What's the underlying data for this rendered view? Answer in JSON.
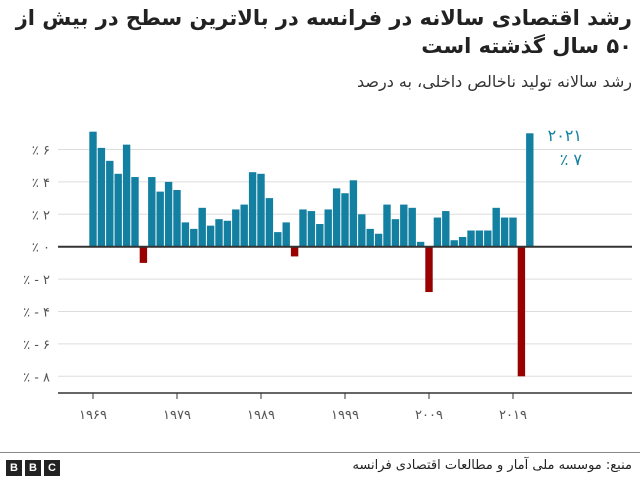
{
  "header": {
    "title": "رشد اقتصادی سالانه در فرانسه در بالاترین سطح در بیش از ۵۰ سال گذشته است",
    "subtitle": "رشد سالانه تولید ناخالص داخلی، به درصد"
  },
  "chart_data": {
    "type": "bar",
    "title": "رشد اقتصادی سالانه در فرانسه در بالاترین سطح در بیش از ۵۰ سال گذشته است",
    "subtitle": "رشد سالانه تولید ناخالص داخلی، به درصد",
    "x": [
      1969,
      1970,
      1971,
      1972,
      1973,
      1974,
      1975,
      1976,
      1977,
      1978,
      1979,
      1980,
      1981,
      1982,
      1983,
      1984,
      1985,
      1986,
      1987,
      1988,
      1989,
      1990,
      1991,
      1992,
      1993,
      1994,
      1995,
      1996,
      1997,
      1998,
      1999,
      2000,
      2001,
      2002,
      2003,
      2004,
      2005,
      2006,
      2007,
      2008,
      2009,
      2010,
      2011,
      2012,
      2013,
      2014,
      2015,
      2016,
      2017,
      2018,
      2019,
      2020,
      2021
    ],
    "values": [
      7.1,
      6.1,
      5.3,
      4.5,
      6.3,
      4.3,
      -1.0,
      4.3,
      3.4,
      4.0,
      3.5,
      1.5,
      1.1,
      2.4,
      1.3,
      1.7,
      1.6,
      2.3,
      2.6,
      4.6,
      4.5,
      3.0,
      0.9,
      1.5,
      -0.6,
      2.3,
      2.2,
      1.4,
      2.3,
      3.6,
      3.3,
      4.1,
      2.0,
      1.1,
      0.8,
      2.6,
      1.7,
      2.6,
      2.4,
      0.3,
      -2.8,
      1.8,
      2.2,
      0.4,
      0.6,
      1.0,
      1.0,
      1.0,
      2.4,
      1.8,
      1.8,
      -8.0,
      7.0
    ],
    "ylim": [
      -8,
      7.5
    ],
    "y_ticks": [
      6,
      4,
      2,
      0,
      -2,
      -4,
      -6,
      -8
    ],
    "y_tick_labels": [
      "٪ ۶",
      "٪ ۴",
      "٪ ۲",
      "٪ ۰",
      "٪ - ۲",
      "٪ - ۴",
      "٪ - ۶",
      "٪ - ۸"
    ],
    "x_ticks": [
      1969,
      1979,
      1989,
      1999,
      2009,
      2019
    ],
    "x_tick_labels": [
      "۱۹۶۹",
      "۱۹۷۹",
      "۱۹۸۹",
      "۱۹۹۹",
      "۲۰۰۹",
      "۲۰۱۹"
    ],
    "annotation": {
      "year": "۲۰۲۱",
      "value": "٪ ۷"
    },
    "grid": true,
    "colors": {
      "positive": "#1380A1",
      "negative": "#990000",
      "annotation": "#1380A1"
    }
  },
  "footer": {
    "logo": "BBC",
    "source": "منبع: موسسه ملی آمار و مطالعات اقتصادی فرانسه"
  }
}
